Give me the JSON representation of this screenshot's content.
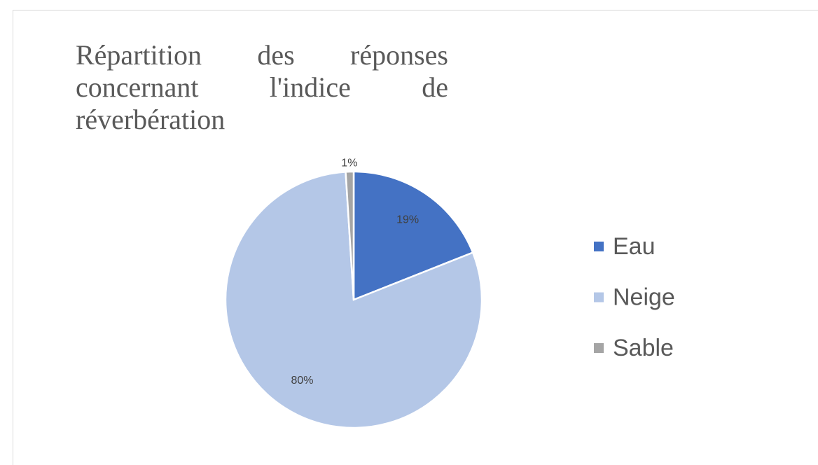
{
  "chart_data": {
    "type": "pie",
    "title": "Répartition des réponses concernant l'indice de réverbération",
    "categories": [
      "Eau",
      "Neige",
      "Sable"
    ],
    "values": [
      19,
      80,
      1
    ],
    "value_labels": [
      "19%",
      "80%",
      "1%"
    ],
    "colors": [
      "#4472c4",
      "#b4c7e7",
      "#a5a5a5"
    ],
    "legend": "right"
  }
}
